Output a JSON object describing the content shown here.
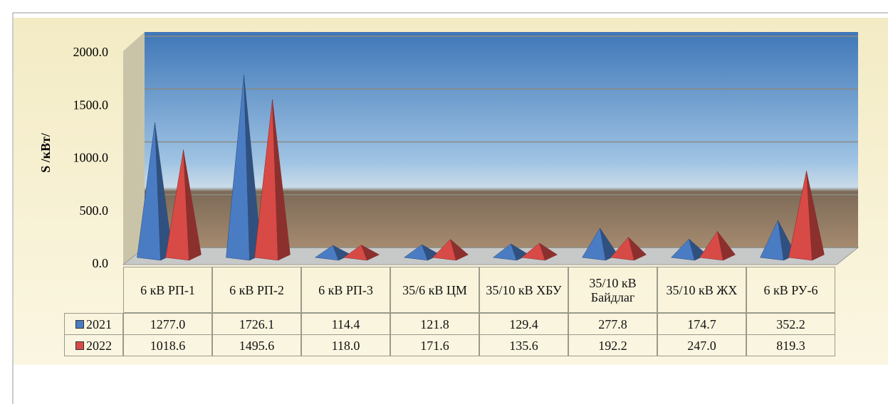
{
  "chart_data": {
    "type": "pyramid_bar",
    "y_label": "S /кВт/",
    "categories": [
      "6 кВ РП-1",
      "6 кВ РП-2",
      "6 кВ РП-3",
      "35/6 кВ ЦМ",
      "35/10 кВ ХБУ",
      "35/10 кВ Байдлаг",
      "35/10 кВ ЖХ",
      "6 кВ РУ-6"
    ],
    "series": [
      {
        "name": "2021",
        "color": "#4a7cc4",
        "values": [
          1277,
          1726.1,
          114.4,
          121.8,
          129.4,
          277.8,
          174.7,
          352.2
        ],
        "value_labels": [
          "1277.0",
          "1726.1",
          "114.4",
          "121.8",
          "129.4",
          "277.8",
          "174.7",
          "352.2"
        ]
      },
      {
        "name": "2022",
        "color": "#d84a46",
        "values": [
          1018.6,
          1495.6,
          118,
          171.6,
          135.6,
          192.2,
          247,
          819.3
        ],
        "value_labels": [
          "1018.6",
          "1495.6",
          "118.0",
          "171.6",
          "135.6",
          "192.2",
          "247.0",
          "819.3"
        ]
      }
    ],
    "ylim": [
      0,
      2000
    ],
    "yticks": [
      {
        "value": 0,
        "label": "0.0"
      },
      {
        "value": 500,
        "label": "500.0"
      },
      {
        "value": 1000,
        "label": "1000.0"
      },
      {
        "value": 1500,
        "label": "1500.0"
      },
      {
        "value": 2000,
        "label": "2000.0"
      }
    ],
    "grid": true
  }
}
